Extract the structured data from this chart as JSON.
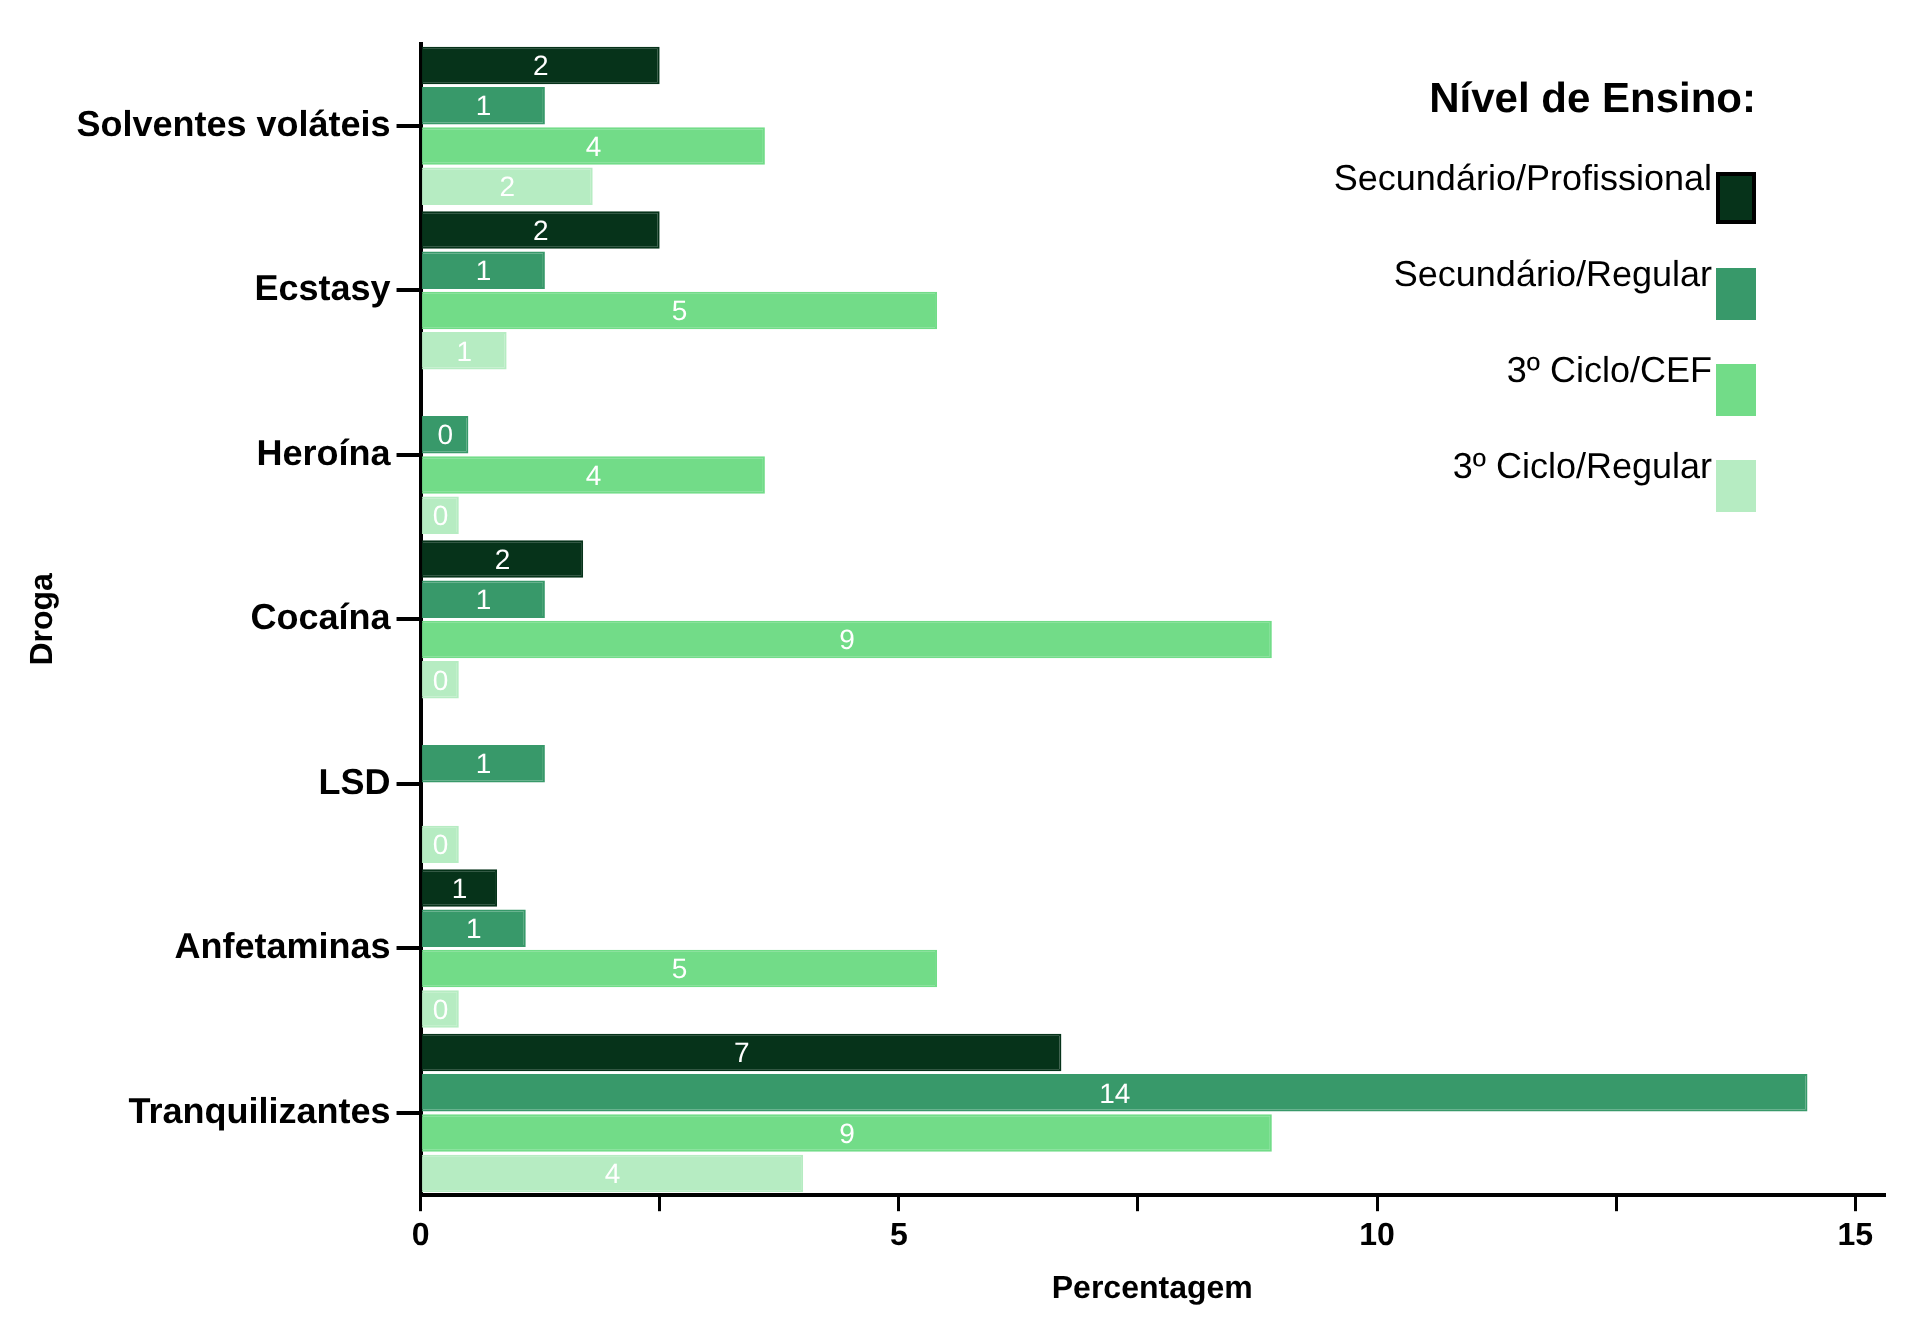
{
  "chart_data": {
    "type": "bar",
    "orientation": "horizontal",
    "xlabel": "Percentagem",
    "ylabel": "Droga",
    "legend_title": "Nível de Ensino:",
    "legend": "top right",
    "categories": [
      "Solventes voláteis",
      "Ecstasy",
      "Heroína",
      "Cocaína",
      "LSD",
      "Anfetaminas",
      "Tranquilizantes"
    ],
    "xlim": [
      0,
      15.3
    ],
    "xticks": [
      0,
      {
        "value": 2.5,
        "label": null
      },
      5,
      {
        "value": 7.5,
        "label": null
      },
      10,
      {
        "value": 12.5,
        "label": null
      },
      15
    ],
    "series": [
      {
        "name": "Secundário/Profissional",
        "color": "#06331a",
        "values": [
          2.5,
          2.5,
          null,
          1.7,
          null,
          0.8,
          6.7
        ],
        "value_labels": [
          "2",
          "2",
          null,
          "2",
          null,
          "1",
          "7"
        ]
      },
      {
        "name": "Secundário/Regular",
        "color": "#38996a",
        "values": [
          1.3,
          1.3,
          0.5,
          1.3,
          1.3,
          1.1,
          14.5
        ],
        "value_labels": [
          "1",
          "1",
          "0",
          "1",
          "1",
          "1",
          "14"
        ]
      },
      {
        "name": "3º Ciclo/CEF",
        "color": "#72dc88",
        "values": [
          3.6,
          5.4,
          3.6,
          8.9,
          null,
          5.4,
          8.9
        ],
        "value_labels": [
          "4",
          "5",
          "4",
          "9",
          null,
          "5",
          "9"
        ]
      },
      {
        "name": "3º Ciclo/Regular",
        "color": "#b6ecc2",
        "values": [
          1.8,
          0.9,
          0.4,
          0.4,
          0.4,
          0.4,
          4.0
        ],
        "value_labels": [
          "2",
          "1",
          "0",
          "0",
          "0",
          "0",
          "4"
        ]
      }
    ]
  }
}
